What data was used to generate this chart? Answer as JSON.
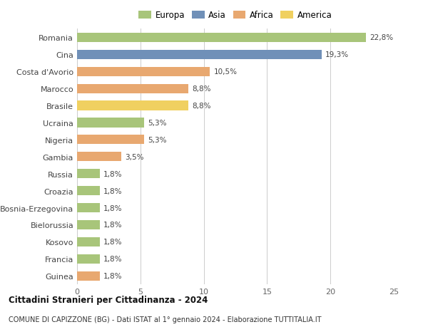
{
  "categories": [
    "Romania",
    "Cina",
    "Costa d'Avorio",
    "Marocco",
    "Brasile",
    "Ucraina",
    "Nigeria",
    "Gambia",
    "Russia",
    "Croazia",
    "Bosnia-Erzegovina",
    "Bielorussia",
    "Kosovo",
    "Francia",
    "Guinea"
  ],
  "values": [
    22.8,
    19.3,
    10.5,
    8.8,
    8.8,
    5.3,
    5.3,
    3.5,
    1.8,
    1.8,
    1.8,
    1.8,
    1.8,
    1.8,
    1.8
  ],
  "labels": [
    "22,8%",
    "19,3%",
    "10,5%",
    "8,8%",
    "8,8%",
    "5,3%",
    "5,3%",
    "3,5%",
    "1,8%",
    "1,8%",
    "1,8%",
    "1,8%",
    "1,8%",
    "1,8%",
    "1,8%"
  ],
  "colors": [
    "#a8c57a",
    "#7090b8",
    "#e8a870",
    "#e8a870",
    "#f0d060",
    "#a8c57a",
    "#e8a870",
    "#e8a870",
    "#a8c57a",
    "#a8c57a",
    "#a8c57a",
    "#a8c57a",
    "#a8c57a",
    "#a8c57a",
    "#e8a870"
  ],
  "legend_labels": [
    "Europa",
    "Asia",
    "Africa",
    "America"
  ],
  "legend_colors": [
    "#a8c57a",
    "#7090b8",
    "#e8a870",
    "#f0d060"
  ],
  "title1": "Cittadini Stranieri per Cittadinanza - 2024",
  "title2": "COMUNE DI CAPIZZONE (BG) - Dati ISTAT al 1° gennaio 2024 - Elaborazione TUTTITALIA.IT",
  "xlim": [
    0,
    25
  ],
  "xticks": [
    0,
    5,
    10,
    15,
    20,
    25
  ],
  "background_color": "#ffffff",
  "grid_color": "#cccccc",
  "bar_height": 0.55
}
